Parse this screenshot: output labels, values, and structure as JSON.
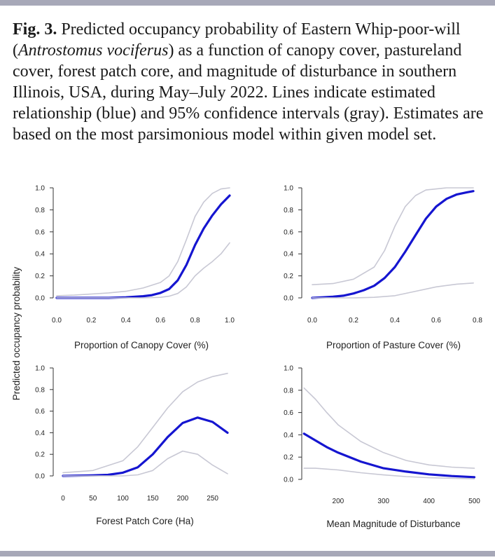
{
  "caption": {
    "fig_label": "Fig. 3.",
    "text_before_italic": " Predicted occupancy probability of Eastern Whip-poor-will (",
    "italic": "Antrostomus vociferus",
    "text_after_italic": ") as a function of canopy cover, pastureland cover, forest patch core, and magnitude of disturbance in southern Illinois, USA, during May–July 2022. Lines indicate estimated relationship (blue) and 95% confidence intervals (gray). Estimates are based on the most parsimonious model within given model set."
  },
  "shared_ylabel": "Predicted occupancy probability",
  "colors": {
    "estimate": "#1515d0",
    "ci": "#c8c8d4",
    "rule": "#a7a8b8"
  },
  "chart_data": [
    {
      "type": "line",
      "xlabel": "Proportion of Canopy Cover (%)",
      "xticks": [
        "0.0",
        "0.2",
        "0.4",
        "0.6",
        "0.8",
        "1.0"
      ],
      "yticks": [
        "0.0",
        "0.2",
        "0.4",
        "0.6",
        "0.8",
        "1.0"
      ],
      "xlim": [
        0,
        1
      ],
      "ylim": [
        0,
        1
      ],
      "series": [
        {
          "role": "estimate",
          "x": [
            0,
            0.1,
            0.2,
            0.3,
            0.4,
            0.5,
            0.55,
            0.6,
            0.65,
            0.7,
            0.75,
            0.8,
            0.85,
            0.9,
            0.95,
            1.0
          ],
          "y": [
            0,
            0,
            0,
            0,
            0.005,
            0.015,
            0.025,
            0.045,
            0.08,
            0.16,
            0.3,
            0.48,
            0.63,
            0.75,
            0.85,
            0.93
          ]
        },
        {
          "role": "ci_upper",
          "x": [
            0,
            0.1,
            0.2,
            0.3,
            0.4,
            0.5,
            0.6,
            0.65,
            0.7,
            0.75,
            0.8,
            0.85,
            0.9,
            0.95,
            1.0
          ],
          "y": [
            0.02,
            0.025,
            0.035,
            0.045,
            0.06,
            0.09,
            0.14,
            0.2,
            0.33,
            0.53,
            0.74,
            0.87,
            0.95,
            0.99,
            1.0
          ]
        },
        {
          "role": "ci_lower",
          "x": [
            0,
            0.2,
            0.4,
            0.5,
            0.6,
            0.65,
            0.7,
            0.75,
            0.8,
            0.85,
            0.9,
            0.95,
            1.0
          ],
          "y": [
            0,
            0,
            0,
            0,
            0.005,
            0.015,
            0.04,
            0.1,
            0.2,
            0.27,
            0.33,
            0.4,
            0.5
          ]
        }
      ]
    },
    {
      "type": "line",
      "xlabel": "Proportion of Pasture Cover (%)",
      "xticks": [
        "0.0",
        "0.2",
        "0.4",
        "0.6",
        "0.8"
      ],
      "yticks": [
        "0.0",
        "0.2",
        "0.4",
        "0.6",
        "0.8",
        "1.0"
      ],
      "xlim": [
        0,
        0.8
      ],
      "ylim": [
        0,
        1
      ],
      "series": [
        {
          "role": "estimate",
          "x": [
            0,
            0.05,
            0.1,
            0.15,
            0.2,
            0.25,
            0.3,
            0.35,
            0.4,
            0.45,
            0.5,
            0.55,
            0.6,
            0.65,
            0.7,
            0.75,
            0.78
          ],
          "y": [
            0,
            0.005,
            0.01,
            0.02,
            0.04,
            0.07,
            0.11,
            0.18,
            0.28,
            0.42,
            0.57,
            0.72,
            0.83,
            0.9,
            0.94,
            0.96,
            0.97
          ]
        },
        {
          "role": "ci_upper",
          "x": [
            0,
            0.1,
            0.2,
            0.3,
            0.35,
            0.4,
            0.45,
            0.5,
            0.55,
            0.6,
            0.65,
            0.7,
            0.78
          ],
          "y": [
            0.12,
            0.13,
            0.17,
            0.28,
            0.43,
            0.65,
            0.83,
            0.93,
            0.98,
            0.99,
            1.0,
            1.0,
            1.0
          ]
        },
        {
          "role": "ci_lower",
          "x": [
            0,
            0.1,
            0.2,
            0.3,
            0.4,
            0.5,
            0.6,
            0.7,
            0.78
          ],
          "y": [
            0,
            0,
            0,
            0.005,
            0.02,
            0.06,
            0.1,
            0.125,
            0.135
          ]
        }
      ]
    },
    {
      "type": "line",
      "xlabel": "Forest Patch Core (Ha)",
      "xticks": [
        "0",
        "50",
        "100",
        "150",
        "200",
        "250"
      ],
      "yticks": [
        "0.0",
        "0.2",
        "0.4",
        "0.6",
        "0.8",
        "1.0"
      ],
      "xlim": [
        0,
        275
      ],
      "ylim": [
        0,
        1
      ],
      "series": [
        {
          "role": "estimate",
          "x": [
            0,
            50,
            75,
            100,
            125,
            150,
            175,
            200,
            225,
            250,
            275
          ],
          "y": [
            0,
            0.005,
            0.01,
            0.03,
            0.08,
            0.2,
            0.36,
            0.49,
            0.54,
            0.5,
            0.4
          ]
        },
        {
          "role": "ci_upper",
          "x": [
            0,
            50,
            100,
            125,
            150,
            175,
            200,
            225,
            250,
            275
          ],
          "y": [
            0.03,
            0.05,
            0.14,
            0.27,
            0.45,
            0.63,
            0.78,
            0.87,
            0.92,
            0.95
          ]
        },
        {
          "role": "ci_lower",
          "x": [
            0,
            50,
            100,
            125,
            150,
            175,
            200,
            225,
            250,
            275
          ],
          "y": [
            0,
            0,
            0,
            0.01,
            0.05,
            0.16,
            0.23,
            0.2,
            0.1,
            0.02
          ]
        }
      ]
    },
    {
      "type": "line",
      "xlabel": "Mean Magnitude of Disturbance",
      "xticks": [
        "200",
        "300",
        "400",
        "500"
      ],
      "yticks": [
        "0.0",
        "0.2",
        "0.4",
        "0.6",
        "0.8",
        "1.0"
      ],
      "xlim": [
        120,
        510
      ],
      "ylim": [
        0,
        1
      ],
      "series": [
        {
          "role": "estimate",
          "x": [
            125,
            150,
            175,
            200,
            250,
            300,
            350,
            400,
            450,
            500
          ],
          "y": [
            0.41,
            0.35,
            0.29,
            0.24,
            0.16,
            0.1,
            0.07,
            0.045,
            0.03,
            0.02
          ]
        },
        {
          "role": "ci_upper",
          "x": [
            125,
            150,
            175,
            200,
            250,
            300,
            350,
            400,
            450,
            500
          ],
          "y": [
            0.82,
            0.72,
            0.6,
            0.49,
            0.34,
            0.24,
            0.17,
            0.13,
            0.11,
            0.1
          ]
        },
        {
          "role": "ci_lower",
          "x": [
            125,
            150,
            200,
            250,
            300,
            350,
            400,
            450,
            500
          ],
          "y": [
            0.1,
            0.1,
            0.085,
            0.06,
            0.04,
            0.025,
            0.015,
            0.01,
            0.005
          ]
        }
      ]
    }
  ]
}
